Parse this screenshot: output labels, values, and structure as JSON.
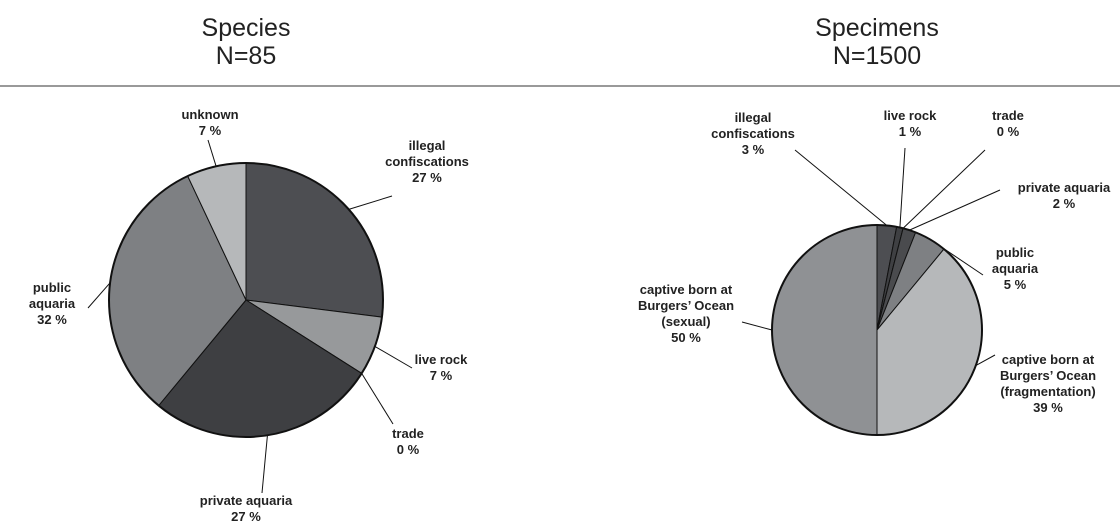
{
  "chart_data": [
    {
      "type": "pie",
      "title": "Species",
      "subtitle": "N=85",
      "categories": [
        "illegal confiscations",
        "live rock",
        "trade",
        "private aquaria",
        "public aquaria",
        "unknown"
      ],
      "values": [
        27,
        7,
        0,
        27,
        32,
        7
      ],
      "value_labels": [
        "27 %",
        "7 %",
        "0 %",
        "27 %",
        "32 %",
        "7 %"
      ],
      "colors": [
        "#4d4e52",
        "#97999b",
        "#97999b",
        "#3e3f42",
        "#7e8083",
        "#b6b8ba"
      ]
    },
    {
      "type": "pie",
      "title": "Specimens",
      "subtitle": "N=1500",
      "categories": [
        "illegal confiscations",
        "live rock",
        "trade",
        "private aquaria",
        "public aquaria",
        "captive born at Burgers’ Ocean (fragmentation)",
        "captive born at Burgers’ Ocean (sexual)"
      ],
      "values": [
        3,
        1,
        0,
        2,
        5,
        39,
        50
      ],
      "value_labels": [
        "3 %",
        "1 %",
        "0 %",
        "2 %",
        "5 %",
        "39 %",
        "50 %"
      ],
      "colors": [
        "#4d4e52",
        "#3f4043",
        "#3f4043",
        "#4a4b4e",
        "#7e8083",
        "#b6b8ba",
        "#8f9194"
      ]
    }
  ]
}
